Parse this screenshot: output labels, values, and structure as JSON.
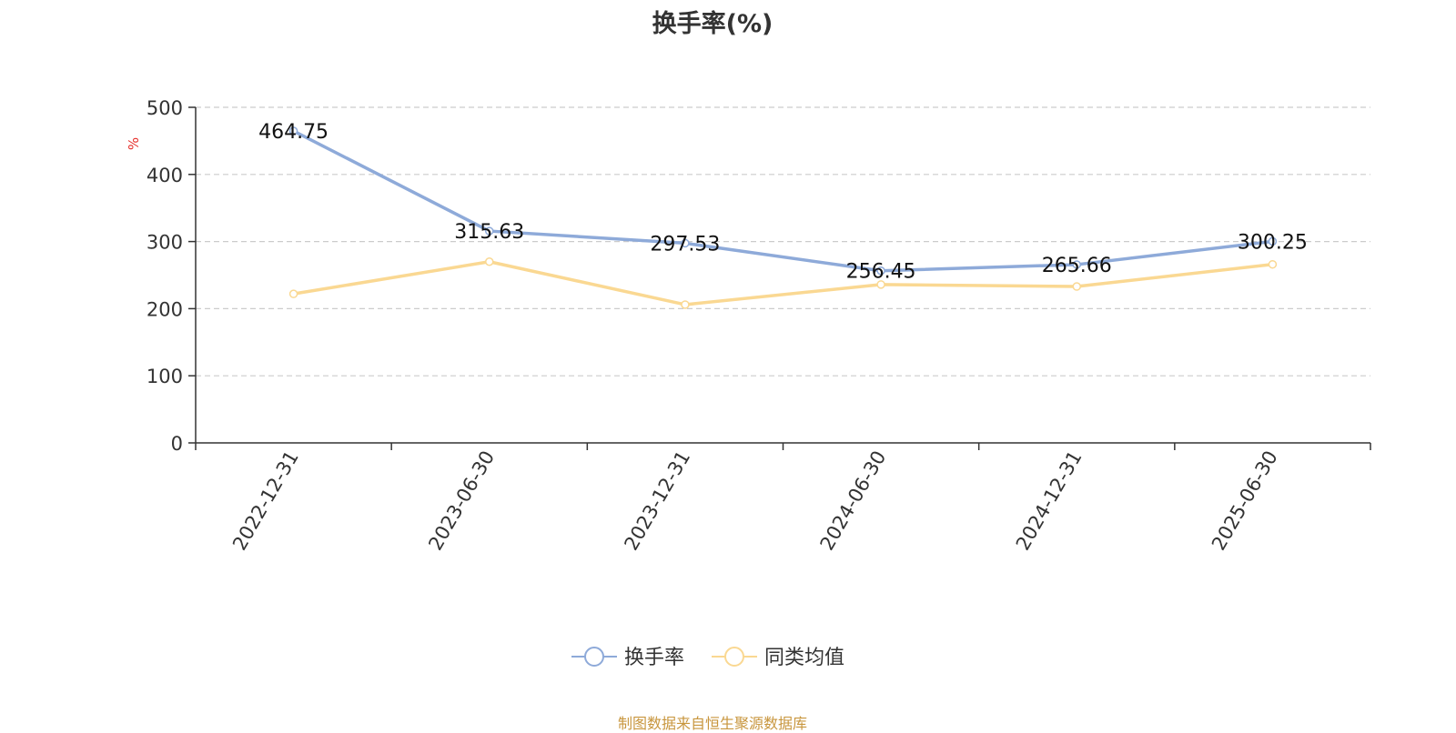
{
  "chart_data": {
    "type": "line",
    "title": "换手率(%)",
    "ylabel": "%",
    "xlabel": "",
    "categories": [
      "2022-12-31",
      "2023-06-30",
      "2023-12-31",
      "2024-06-30",
      "2024-12-31",
      "2025-06-30"
    ],
    "ylim": [
      0,
      500
    ],
    "yticks": [
      "0",
      "100",
      "200",
      "300",
      "400",
      "500"
    ],
    "grid": true,
    "legend_position": "bottom-center",
    "series": [
      {
        "name": "换手率",
        "color": "#8eaad9",
        "values": [
          464.75,
          315.63,
          297.53,
          256.45,
          265.66,
          300.25
        ],
        "data_labels": [
          "464.75",
          "315.63",
          "297.53",
          "256.45",
          "265.66",
          "300.25"
        ]
      },
      {
        "name": "同类均值",
        "color": "#fad892",
        "values": [
          222,
          270,
          206,
          236,
          233,
          266
        ]
      }
    ]
  },
  "source_note": "制图数据来自恒生聚源数据库",
  "colors": {
    "axis": "#333333",
    "grid": "#cccccc",
    "ylabel": "#e6302b",
    "source": "#c8963e"
  }
}
